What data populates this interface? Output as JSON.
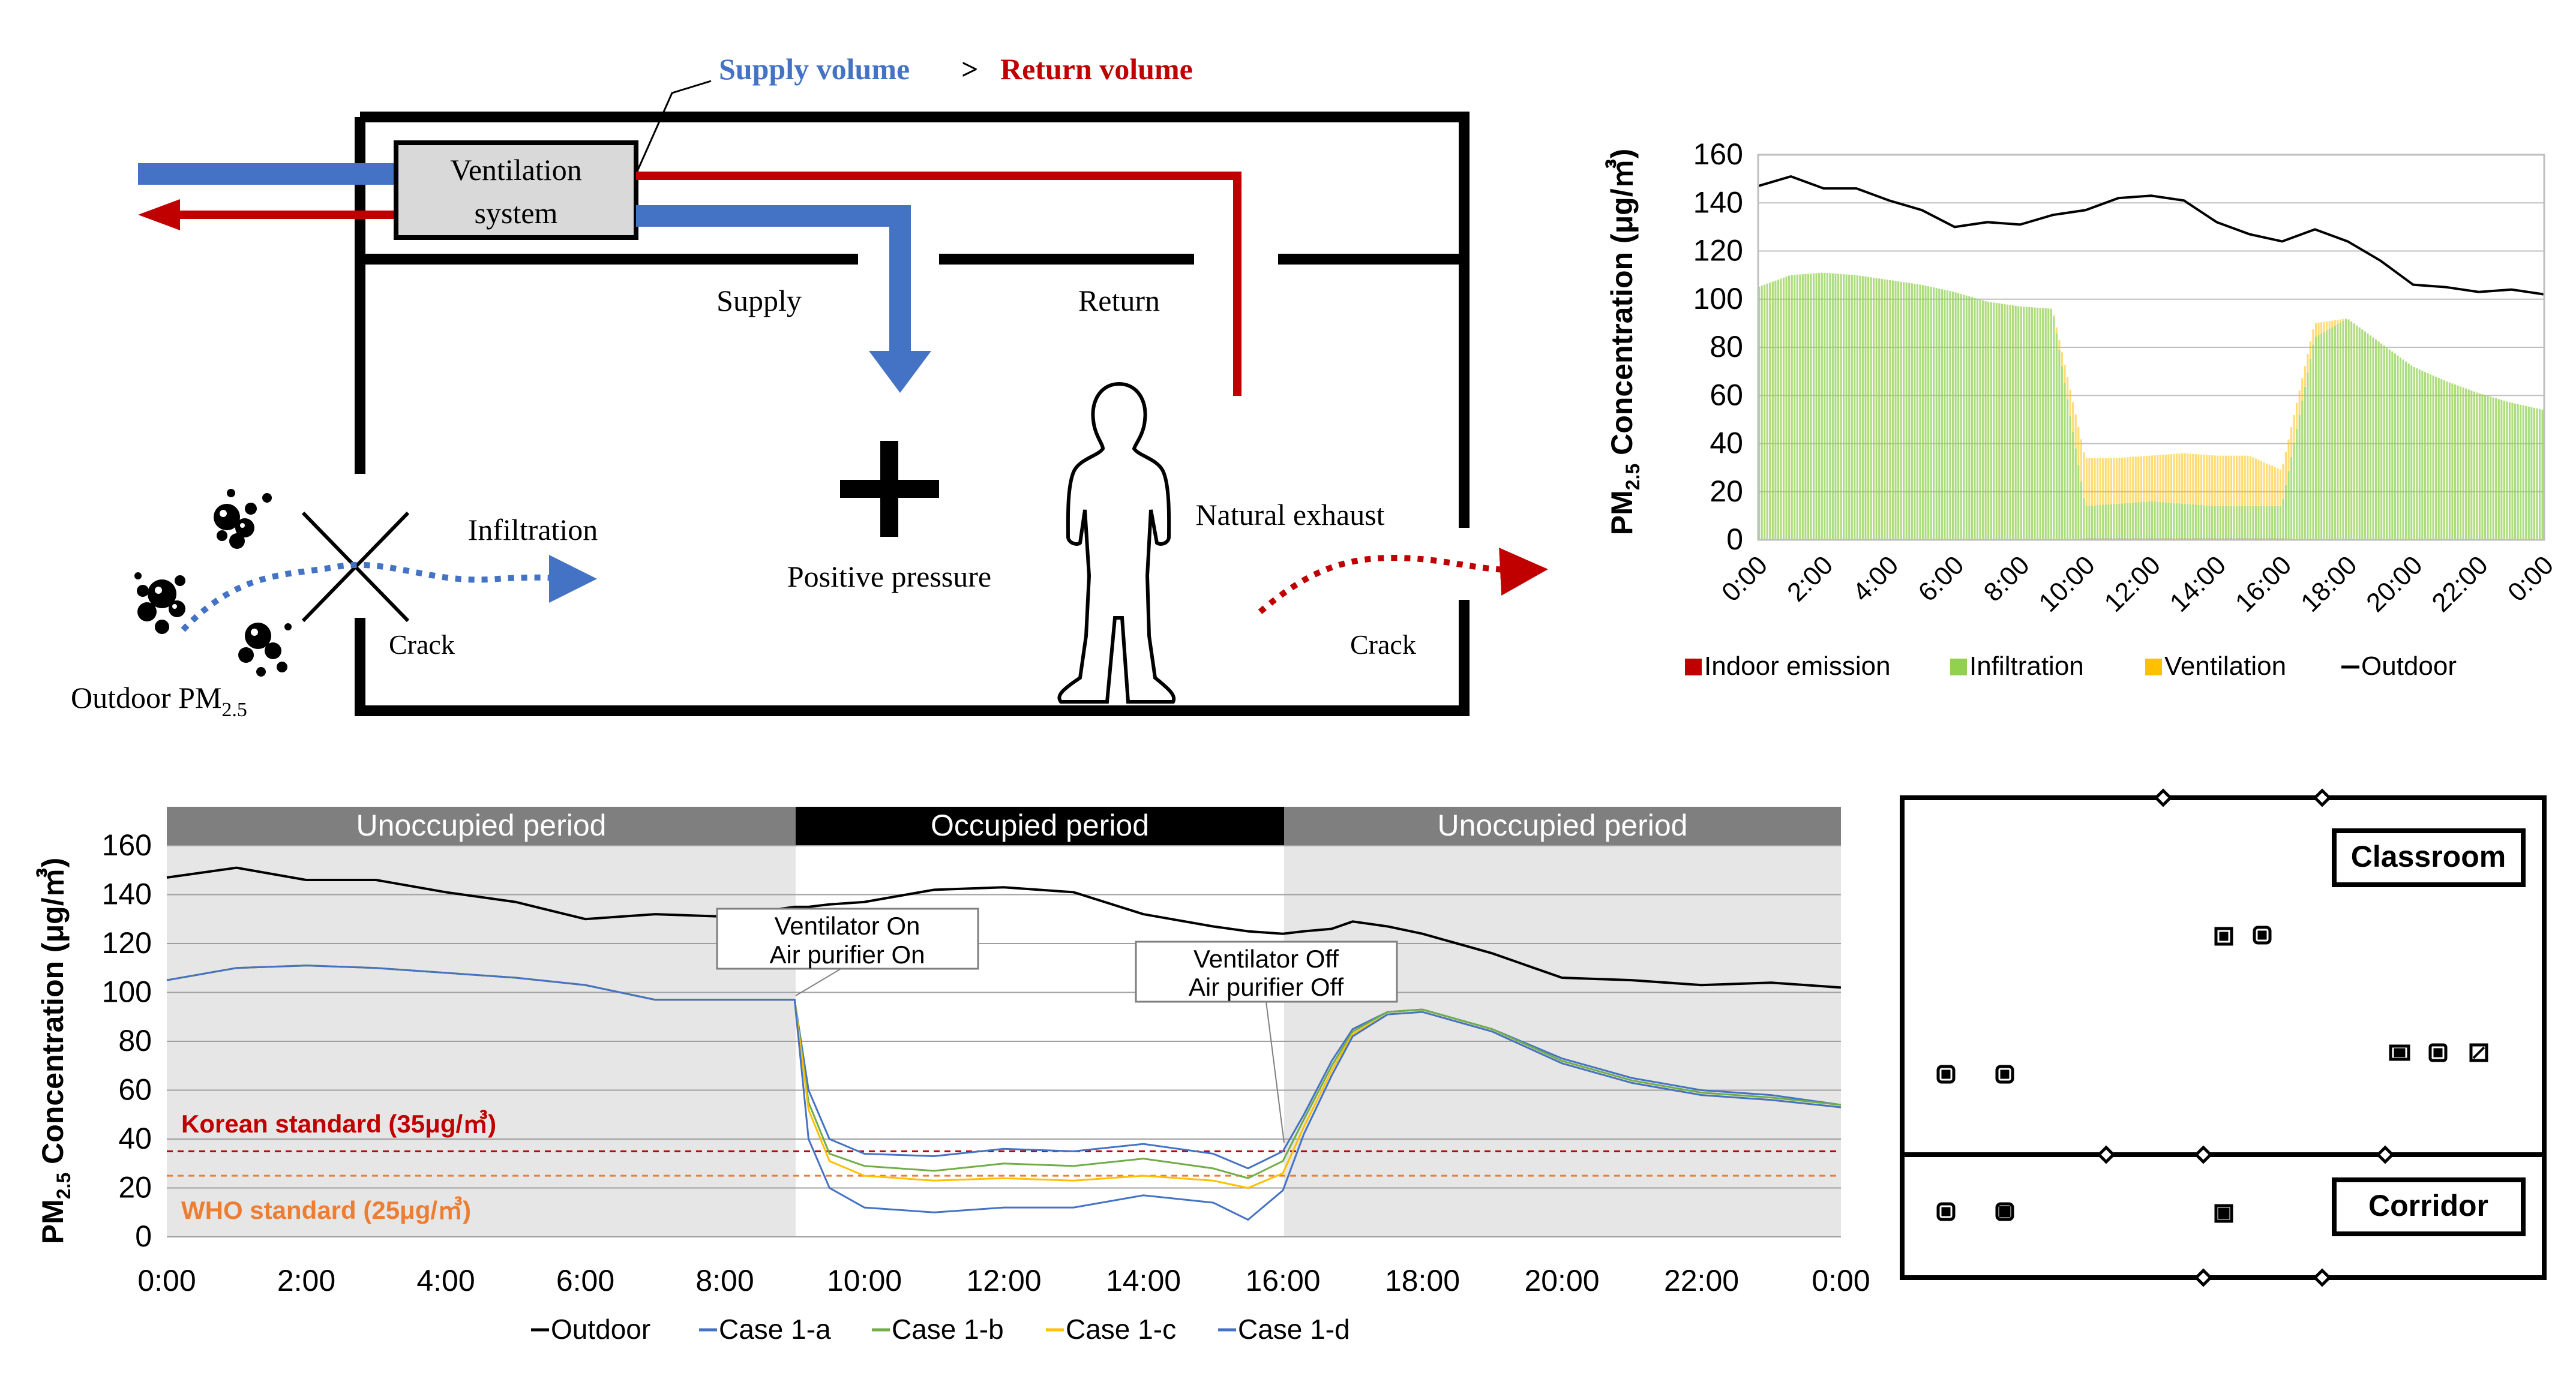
{
  "diagram": {
    "supply_volume": "Supply volume",
    "gt": ">",
    "return_volume": "Return volume",
    "ventilation_line1": "Ventilation",
    "ventilation_line2": "system",
    "supply": "Supply",
    "return": "Return",
    "infiltration": "Infiltration",
    "positive_pressure": "Positive pressure",
    "natural_exhaust": "Natural exhaust",
    "crack": "Crack",
    "outdoor_pm_main": "Outdoor PM",
    "outdoor_pm_sub": "2.5",
    "colors": {
      "supply": "#4472c4",
      "return": "#c00000",
      "outline": "#000000"
    }
  },
  "chart_top": {
    "type": "area",
    "ylabel_pm": "PM",
    "ylabel_sub": "2.5",
    "ylabel_rest": " Concentration (μg/㎥)",
    "ylim": [
      0,
      160
    ],
    "yticks": [
      "0",
      "20",
      "40",
      "60",
      "80",
      "100",
      "120",
      "140",
      "160"
    ],
    "xticks": [
      "0:00",
      "2:00",
      "4:00",
      "6:00",
      "8:00",
      "10:00",
      "12:00",
      "14:00",
      "16:00",
      "18:00",
      "20:00",
      "22:00",
      "0:00"
    ],
    "legend": [
      "Indoor emission",
      "Infiltration",
      "Ventilation",
      "Outdoor"
    ],
    "colors": {
      "indoor": "#c00000",
      "infiltration": "#92d050",
      "ventilation": "#ffc000",
      "outdoor": "#000000"
    }
  },
  "chart_bottom": {
    "type": "line",
    "ylabel_pm": "PM",
    "ylabel_sub": "2.5",
    "ylabel_rest": " Concentration (μg/㎥)",
    "ylim": [
      0,
      160
    ],
    "yticks": [
      "0",
      "20",
      "40",
      "60",
      "80",
      "100",
      "120",
      "140",
      "160"
    ],
    "xticks": [
      "0:00",
      "2:00",
      "4:00",
      "6:00",
      "8:00",
      "10:00",
      "12:00",
      "14:00",
      "16:00",
      "18:00",
      "20:00",
      "22:00",
      "0:00"
    ],
    "periods": [
      "Unoccupied period",
      "Occupied period",
      "Unoccupied period"
    ],
    "callout_on": [
      "Ventilator On",
      "Air purifier On"
    ],
    "callout_off": [
      "Ventilator Off",
      "Air purifier Off"
    ],
    "korean_standard": "Korean standard (35μg/㎥)",
    "who_standard": "WHO standard (25μg/㎥)",
    "korean_value": 35,
    "who_value": 25,
    "legend": [
      "Outdoor",
      "Case 1-a",
      "Case 1-b",
      "Case 1-c",
      "Case 1-d"
    ],
    "colors": {
      "outdoor": "#000000",
      "case_a": "#4472c4",
      "case_b": "#70ad47",
      "case_c": "#ffc000",
      "case_d": "#4472c4",
      "korean": "#c00000",
      "who": "#ed7d31"
    }
  },
  "floorplan": {
    "classroom": "Classroom",
    "corridor": "Corridor"
  },
  "chart_data": [
    {
      "type": "area",
      "x": [
        0,
        1,
        2,
        3,
        4,
        5,
        6,
        7,
        8,
        9,
        10,
        11,
        12,
        13,
        14,
        15,
        16,
        17,
        18,
        19,
        20,
        21,
        22,
        23,
        24
      ],
      "series": [
        {
          "name": "Outdoor",
          "values": [
            147,
            151,
            146,
            146,
            141,
            137,
            130,
            132,
            131,
            135,
            137,
            142,
            143,
            141,
            132,
            127,
            124,
            129,
            124,
            116,
            106,
            105,
            103,
            104,
            102
          ]
        },
        {
          "name": "Infiltration",
          "values": [
            105,
            110,
            111,
            110,
            108,
            106,
            103,
            99,
            97,
            96,
            14,
            15,
            16,
            15,
            14,
            14,
            14,
            84,
            92,
            82,
            72,
            66,
            61,
            57,
            54
          ]
        },
        {
          "name": "Ventilation",
          "values": [
            0,
            0,
            0,
            0,
            0,
            0,
            0,
            0,
            0,
            0,
            20,
            19,
            19,
            21,
            21,
            21,
            15,
            6,
            0,
            0,
            0,
            0,
            0,
            0,
            0
          ]
        },
        {
          "name": "Indoor emission",
          "values": [
            0,
            0,
            0,
            0,
            0,
            0,
            0,
            0,
            0,
            0,
            0.5,
            0.5,
            0.5,
            0.5,
            0.5,
            0.5,
            0.5,
            0,
            0,
            0,
            0,
            0,
            0,
            0,
            0
          ]
        }
      ]
    },
    {
      "type": "line",
      "x": [
        0,
        1,
        2,
        3,
        4,
        5,
        6,
        7,
        8,
        9,
        9.2,
        9.5,
        10,
        11,
        12,
        13,
        14,
        15,
        15.5,
        16,
        16.3,
        16.7,
        17,
        17.5,
        18,
        19,
        20,
        21,
        22,
        23,
        24
      ],
      "series": [
        {
          "name": "Outdoor",
          "values": [
            147,
            151,
            146,
            146,
            141,
            137,
            130,
            132,
            131,
            135,
            135,
            136,
            137,
            142,
            143,
            141,
            132,
            127,
            125,
            124,
            125,
            126,
            129,
            127,
            124,
            116,
            106,
            105,
            103,
            104,
            102
          ]
        },
        {
          "name": "Case 1-a",
          "values": [
            105,
            110,
            111,
            110,
            108,
            106,
            103,
            97,
            97,
            97,
            60,
            40,
            34,
            33,
            36,
            35,
            38,
            34,
            28,
            35,
            50,
            72,
            85,
            92,
            93,
            85,
            73,
            65,
            60,
            58,
            54
          ]
        },
        {
          "name": "Case 1-b",
          "values": [
            105,
            110,
            111,
            110,
            108,
            106,
            103,
            97,
            97,
            97,
            55,
            34,
            29,
            27,
            30,
            29,
            32,
            28,
            24,
            31,
            48,
            70,
            84,
            92,
            93,
            85,
            72,
            64,
            59,
            57,
            54
          ]
        },
        {
          "name": "Case 1-c",
          "values": [
            105,
            110,
            111,
            110,
            108,
            106,
            103,
            97,
            97,
            97,
            52,
            31,
            25,
            23,
            24,
            23,
            25,
            23,
            20,
            26,
            45,
            68,
            83,
            91,
            92,
            84,
            71,
            63,
            58,
            56,
            53
          ]
        },
        {
          "name": "Case 1-d",
          "values": [
            105,
            110,
            111,
            110,
            108,
            106,
            103,
            97,
            97,
            97,
            40,
            20,
            12,
            10,
            12,
            12,
            17,
            14,
            7,
            19,
            42,
            66,
            82,
            91,
            92,
            84,
            71,
            63,
            58,
            56,
            53
          ]
        }
      ]
    }
  ]
}
